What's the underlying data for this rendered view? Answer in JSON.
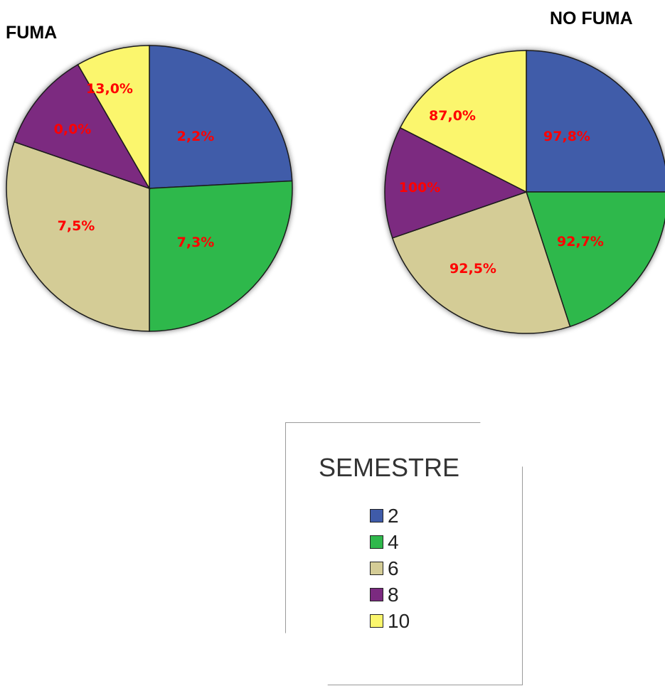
{
  "chart_data": [
    {
      "type": "pie",
      "title": "FUMA",
      "legend_title": "SEMESTRE",
      "categories": [
        "2",
        "4",
        "6",
        "8",
        "10"
      ],
      "values": [
        2.2,
        7.3,
        7.5,
        0.0,
        13.0
      ],
      "labels": [
        "2,2%",
        "7,3%",
        "7,5%",
        "0,0%",
        "13,0%"
      ],
      "colors": [
        "#3f5ba9",
        "#2fb84c",
        "#d4cc96",
        "#7b2a80",
        "#fbf66d"
      ],
      "label_color": "#ff0000"
    },
    {
      "type": "pie",
      "title": "NO FUMA",
      "legend_title": "SEMESTRE",
      "categories": [
        "2",
        "4",
        "6",
        "8",
        "10"
      ],
      "values": [
        97.8,
        92.7,
        92.5,
        100,
        87.0
      ],
      "labels": [
        "97,8%",
        "92,7%",
        "92,5%",
        "100%",
        "87,0%"
      ],
      "colors": [
        "#3f5ba9",
        "#2fb84c",
        "#d4cc96",
        "#7b2a80",
        "#fbf66d"
      ],
      "label_color": "#ff0000"
    }
  ],
  "legend": {
    "title": "SEMESTRE",
    "items": [
      {
        "label": "2",
        "color": "#3f5ba9"
      },
      {
        "label": "4",
        "color": "#2fb84c"
      },
      {
        "label": "6",
        "color": "#d4cc96"
      },
      {
        "label": "8",
        "color": "#7b2a80"
      },
      {
        "label": "10",
        "color": "#fbf66d"
      }
    ]
  }
}
